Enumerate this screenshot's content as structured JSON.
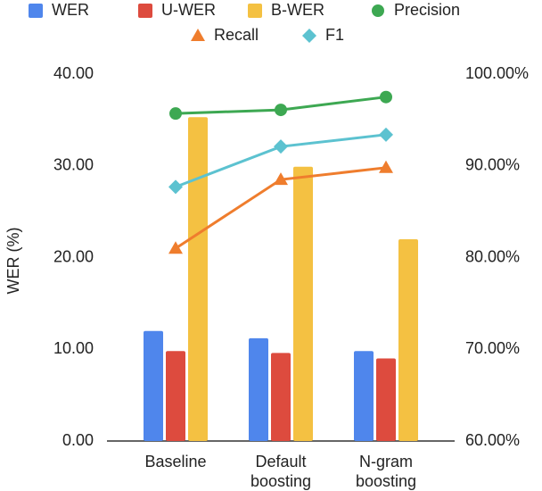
{
  "chart_data": {
    "type": "bar",
    "y_label": "WER (%)",
    "categories": [
      "Baseline",
      "Default boosting",
      "N-gram boosting"
    ],
    "series": [
      {
        "name": "WER",
        "type": "bar",
        "color": "#4f86ec",
        "values": [
          12.0,
          11.2,
          9.8
        ]
      },
      {
        "name": "U-WER",
        "type": "bar",
        "color": "#dd4b3e",
        "values": [
          9.8,
          9.6,
          9.0
        ]
      },
      {
        "name": "B-WER",
        "type": "bar",
        "color": "#f4c142",
        "values": [
          35.3,
          29.9,
          22.0
        ]
      },
      {
        "name": "Precision",
        "type": "line",
        "marker": "circle",
        "axis": "y2",
        "color": "#3da852",
        "values": [
          95.7,
          96.1,
          97.5
        ]
      },
      {
        "name": "Recall",
        "type": "line",
        "marker": "triangle",
        "axis": "y2",
        "color": "#ef7d2d",
        "values": [
          81.0,
          88.5,
          89.8
        ]
      },
      {
        "name": "F1",
        "type": "line",
        "marker": "diamond",
        "axis": "y2",
        "color": "#5cc2d0",
        "values": [
          87.7,
          92.1,
          93.4
        ]
      }
    ],
    "ylim": [
      0,
      40
    ],
    "yticks": [
      {
        "value": 0,
        "label": "0.00"
      },
      {
        "value": 10,
        "label": "10.00"
      },
      {
        "value": 20,
        "label": "20.00"
      },
      {
        "value": 30,
        "label": "30.00"
      },
      {
        "value": 40,
        "label": "40.00"
      }
    ],
    "y2lim": [
      60,
      100
    ],
    "y2ticks": [
      {
        "value": 60,
        "label": "60.00%"
      },
      {
        "value": 70,
        "label": "70.00%"
      },
      {
        "value": 80,
        "label": "80.00%"
      },
      {
        "value": 90,
        "label": "90.00%"
      },
      {
        "value": 100,
        "label": "100.00%"
      }
    ],
    "grid": false,
    "legend": "top"
  }
}
